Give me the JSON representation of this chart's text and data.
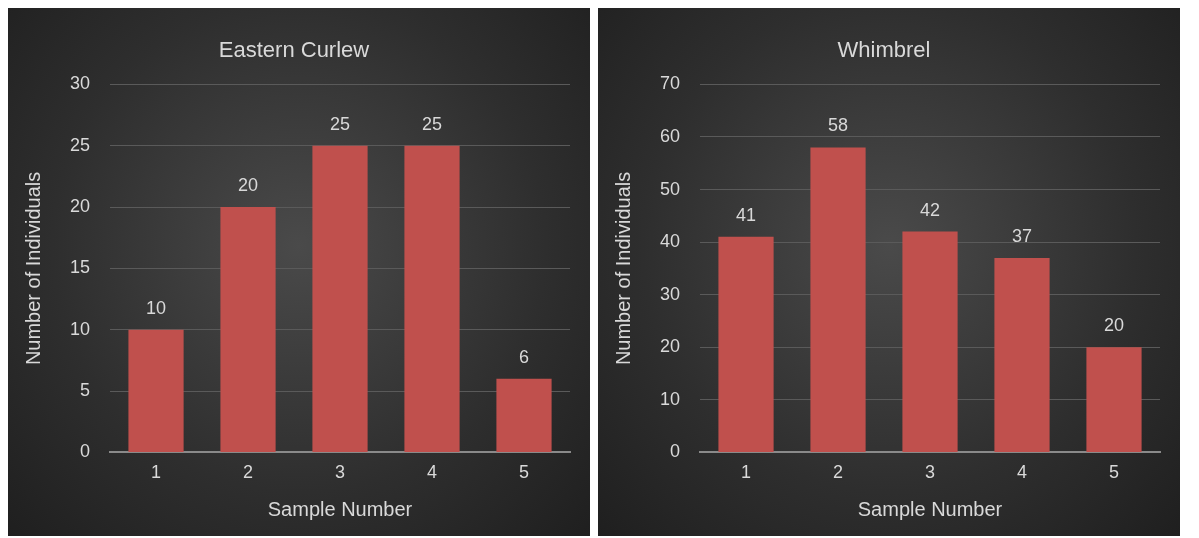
{
  "chart_data": [
    {
      "type": "bar",
      "title": "Eastern Curlew",
      "xlabel": "Sample Number",
      "ylabel": "Number of Individuals",
      "categories": [
        "1",
        "2",
        "3",
        "4",
        "5"
      ],
      "values": [
        10,
        20,
        25,
        25,
        6
      ],
      "color": "#c0504d",
      "ylim": [
        0,
        30
      ],
      "yticks": [
        0,
        5,
        10,
        15,
        20,
        25,
        30
      ],
      "grid": "y",
      "data_labels": true
    },
    {
      "type": "bar",
      "title": "Whimbrel",
      "xlabel": "Sample Number",
      "ylabel": "Number of Individuals",
      "categories": [
        "1",
        "2",
        "3",
        "4",
        "5"
      ],
      "values": [
        41,
        58,
        42,
        37,
        20
      ],
      "color": "#c0504d",
      "ylim": [
        0,
        70
      ],
      "yticks": [
        0,
        10,
        20,
        30,
        40,
        50,
        60,
        70
      ],
      "grid": "y",
      "data_labels": true
    }
  ]
}
